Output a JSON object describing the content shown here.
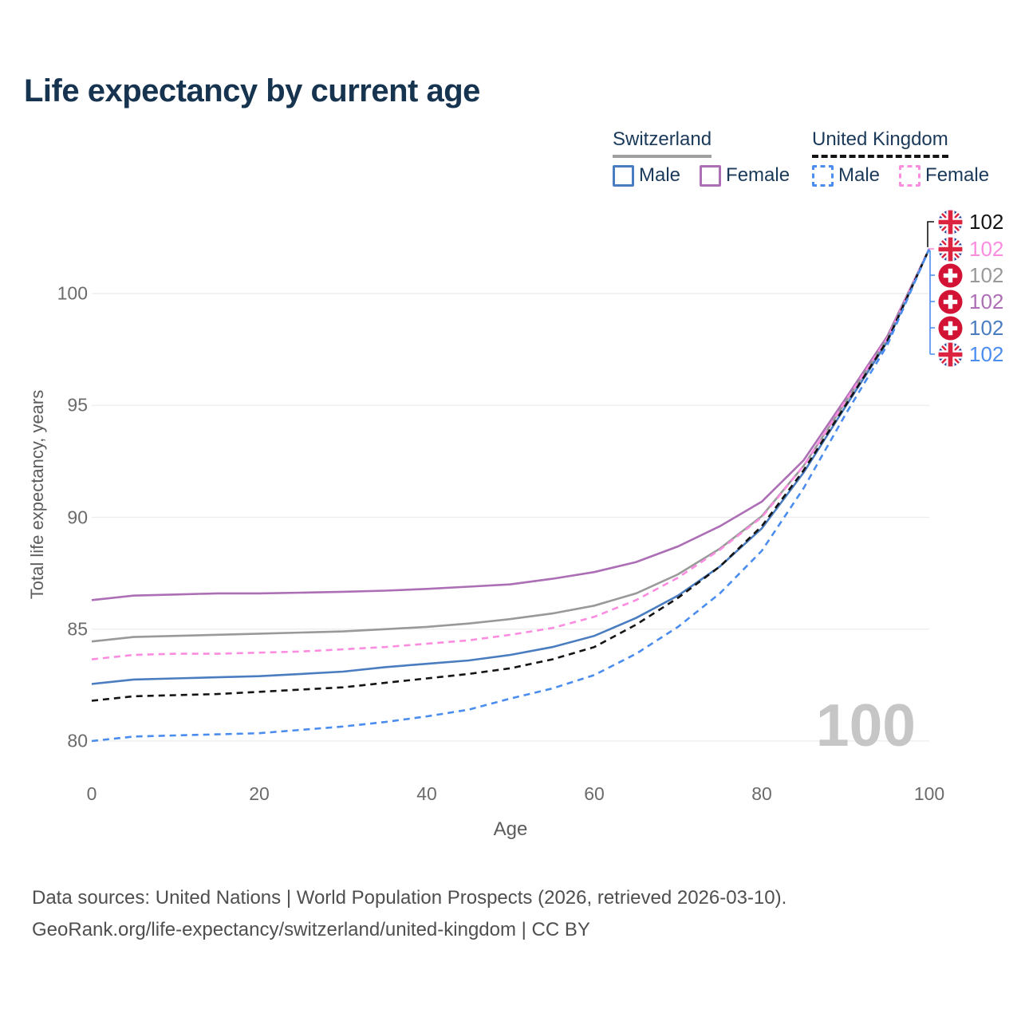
{
  "title": "Life expectancy by current age",
  "legend": {
    "groups": [
      {
        "label": "Switzerland",
        "line_style": "solid",
        "line_color": "#a0a0a0",
        "items": [
          {
            "label": "Male",
            "color": "#4a7dc0",
            "dashed": false
          },
          {
            "label": "Female",
            "color": "#ac6eb4",
            "dashed": false
          }
        ]
      },
      {
        "label": "United Kingdom",
        "line_style": "dashed",
        "line_color": "#141414",
        "items": [
          {
            "label": "Male",
            "color": "#4a8def",
            "dashed": true
          },
          {
            "label": "Female",
            "color": "#fb8ce0",
            "dashed": true
          }
        ]
      }
    ]
  },
  "watermark": "100",
  "footer": {
    "line1": "Data sources: United Nations | World Population Prospects (2026, retrieved 2026-03-10).",
    "line2": "GeoRank.org/life-expectancy/switzerland/united-kingdom | CC BY"
  },
  "colors": {
    "title": "#16334f",
    "legend_text": "#1b3a5a",
    "axis_text": "#6b6b6b",
    "gridline": "#ececec",
    "watermark": "#c6c6c6",
    "ch_male": "#4a7dc0",
    "ch_female": "#ac6eb4",
    "ch_total": "#999999",
    "uk_male": "#4a8def",
    "uk_female": "#fb8ce0",
    "uk_total": "#141414",
    "flag_ch_red": "#d31335",
    "flag_uk_blue": "#283f9b",
    "flag_uk_red": "#dc2340"
  },
  "chart_data": {
    "type": "line",
    "title": "Life expectancy by current age",
    "xlabel": "Age",
    "ylabel": "Total life expectancy, years",
    "xticks": [
      0,
      20,
      40,
      60,
      80,
      100
    ],
    "yticks": [
      80,
      85,
      90,
      95,
      100
    ],
    "xlim": [
      0,
      100
    ],
    "ylim": [
      79,
      103
    ],
    "grid": "horizontal",
    "legend_position": "top-right",
    "x": [
      0,
      5,
      10,
      15,
      20,
      25,
      30,
      35,
      40,
      45,
      50,
      55,
      60,
      65,
      70,
      75,
      80,
      85,
      90,
      95,
      100
    ],
    "series": [
      {
        "name": "United Kingdom Total",
        "country": "United Kingdom",
        "sex": "Total",
        "color": "#141414",
        "dashed": true,
        "flag": "uk",
        "end_label": "102",
        "values": [
          81.8,
          82.0,
          82.05,
          82.1,
          82.2,
          82.3,
          82.4,
          82.6,
          82.8,
          83.0,
          83.25,
          83.65,
          84.2,
          85.2,
          86.4,
          87.8,
          89.6,
          92.1,
          95.0,
          97.9,
          102
        ]
      },
      {
        "name": "United Kingdom Female",
        "country": "United Kingdom",
        "sex": "Female",
        "color": "#fb8ce0",
        "dashed": true,
        "flag": "uk",
        "end_label": "102",
        "values": [
          83.65,
          83.85,
          83.9,
          83.9,
          83.95,
          84.0,
          84.1,
          84.2,
          84.35,
          84.5,
          84.75,
          85.05,
          85.55,
          86.3,
          87.3,
          88.55,
          90.0,
          92.3,
          95.2,
          98.0,
          102
        ]
      },
      {
        "name": "Switzerland Total",
        "country": "Switzerland",
        "sex": "Total",
        "color": "#999999",
        "dashed": false,
        "flag": "ch",
        "end_label": "102",
        "values": [
          84.45,
          84.65,
          84.7,
          84.75,
          84.8,
          84.85,
          84.9,
          85.0,
          85.1,
          85.25,
          85.45,
          85.7,
          86.05,
          86.6,
          87.45,
          88.6,
          90.05,
          92.3,
          95.15,
          98.0,
          102
        ]
      },
      {
        "name": "Switzerland Female",
        "country": "Switzerland",
        "sex": "Female",
        "color": "#ac6eb4",
        "dashed": false,
        "flag": "ch",
        "end_label": "102",
        "values": [
          86.3,
          86.5,
          86.55,
          86.6,
          86.6,
          86.63,
          86.67,
          86.72,
          86.8,
          86.9,
          87.0,
          87.25,
          87.55,
          88.0,
          88.7,
          89.6,
          90.7,
          92.55,
          95.3,
          98.1,
          102
        ]
      },
      {
        "name": "Switzerland Male",
        "country": "Switzerland",
        "sex": "Male",
        "color": "#4a7dc0",
        "dashed": false,
        "flag": "ch",
        "end_label": "102",
        "values": [
          82.55,
          82.75,
          82.8,
          82.85,
          82.9,
          83.0,
          83.1,
          83.3,
          83.45,
          83.6,
          83.85,
          84.2,
          84.7,
          85.5,
          86.5,
          87.8,
          89.5,
          92.0,
          94.95,
          97.85,
          102
        ]
      },
      {
        "name": "United Kingdom Male",
        "country": "United Kingdom",
        "sex": "Male",
        "color": "#4a8def",
        "dashed": true,
        "flag": "uk",
        "end_label": "102",
        "values": [
          80.0,
          80.2,
          80.25,
          80.3,
          80.35,
          80.5,
          80.65,
          80.85,
          81.1,
          81.4,
          81.9,
          82.35,
          82.95,
          83.9,
          85.1,
          86.6,
          88.5,
          91.3,
          94.6,
          97.7,
          102
        ]
      }
    ]
  }
}
